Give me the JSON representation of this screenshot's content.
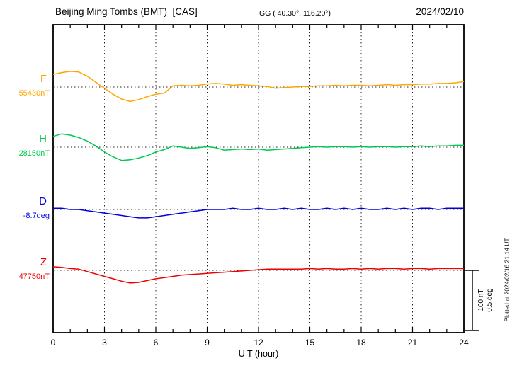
{
  "header": {
    "title": "Beijing Ming Tombs (BMT)  [CAS]",
    "coords": "GG ( 40.30°, 116.20°)",
    "date": "2024/02/10"
  },
  "xlabel": "U T (hour)",
  "plotted_at": "Plotted at 2024/02/16 21:14 UT",
  "scale_bar": {
    "nt_label": "100 nT",
    "deg_label": "0.5 deg"
  },
  "channels": [
    {
      "key": "F",
      "label": "F",
      "baseline_label": "55430nT",
      "unit": "nT",
      "color": "#ffa500"
    },
    {
      "key": "H",
      "label": "H",
      "baseline_label": "28150nT",
      "unit": "nT",
      "color": "#00c850"
    },
    {
      "key": "D",
      "label": "D",
      "baseline_label": "-8.7deg",
      "unit": "deg",
      "color": "#0000dd"
    },
    {
      "key": "Z",
      "label": "Z",
      "baseline_label": "47750nT",
      "unit": "nT",
      "color": "#ee0000"
    }
  ],
  "chart_data": {
    "type": "line",
    "title": "Beijing Ming Tombs (BMT) [CAS] magnetogram, 2024/02/10",
    "xlabel": "U T (hour)",
    "x_range": [
      0,
      24
    ],
    "x_ticks": [
      0,
      3,
      6,
      9,
      12,
      15,
      18,
      21,
      24
    ],
    "x_step_hours": 0.5,
    "grid": "vertical dotted at 3-hour intervals; dotted horizontal baseline per channel",
    "scale": {
      "nT_per_division": 100,
      "deg_per_division": 0.5
    },
    "series": [
      {
        "name": "F",
        "unit": "nT",
        "baseline": 55430,
        "color": "#ffa500",
        "offsets": [
          21,
          24,
          26,
          25,
          18,
          8,
          -2,
          -12,
          -20,
          -24,
          -21,
          -16,
          -12,
          -10,
          2,
          3,
          2,
          3,
          5,
          6,
          5,
          3,
          4,
          3,
          2,
          1,
          -2,
          -1,
          0,
          1,
          1,
          2,
          2,
          3,
          2,
          3,
          3,
          2,
          3,
          4,
          3,
          4,
          4,
          5,
          5,
          6,
          6,
          7,
          9
        ]
      },
      {
        "name": "H",
        "unit": "nT",
        "baseline": 28150,
        "color": "#00c850",
        "offsets": [
          18,
          22,
          20,
          16,
          10,
          2,
          -8,
          -16,
          -22,
          -21,
          -18,
          -14,
          -8,
          -4,
          2,
          0,
          -2,
          -1,
          1,
          -1,
          -5,
          -4,
          -3,
          -4,
          -3,
          -5,
          -4,
          -3,
          -2,
          -1,
          0,
          1,
          0,
          1,
          1,
          0,
          1,
          0,
          1,
          1,
          0,
          1,
          1,
          2,
          1,
          2,
          2,
          3,
          3
        ]
      },
      {
        "name": "D",
        "unit": "deg",
        "baseline": -8.7,
        "color": "#0000dd",
        "offsets": [
          0.01,
          0.01,
          0,
          0,
          -0.01,
          -0.02,
          -0.03,
          -0.04,
          -0.05,
          -0.06,
          -0.07,
          -0.07,
          -0.06,
          -0.05,
          -0.04,
          -0.03,
          -0.02,
          -0.01,
          0,
          0,
          0,
          0.01,
          0,
          0,
          0.01,
          0,
          0,
          0.01,
          0,
          0.01,
          0,
          0,
          0.01,
          0,
          0.01,
          0,
          0.01,
          0,
          0,
          0.01,
          0,
          0.01,
          0,
          0.01,
          0.01,
          0,
          0.01,
          0.01,
          0.01
        ]
      },
      {
        "name": "Z",
        "unit": "nT",
        "baseline": 47750,
        "color": "#ee0000",
        "offsets": [
          6,
          5,
          3,
          2,
          -2,
          -6,
          -10,
          -14,
          -18,
          -21,
          -20,
          -17,
          -14,
          -12,
          -10,
          -8,
          -7,
          -6,
          -5,
          -4,
          -3,
          -2,
          -1,
          0,
          1,
          2,
          2,
          2,
          2,
          2,
          3,
          2,
          3,
          2,
          2,
          3,
          2,
          3,
          2,
          3,
          3,
          2,
          3,
          3,
          2,
          3,
          3,
          3,
          3
        ]
      }
    ]
  }
}
